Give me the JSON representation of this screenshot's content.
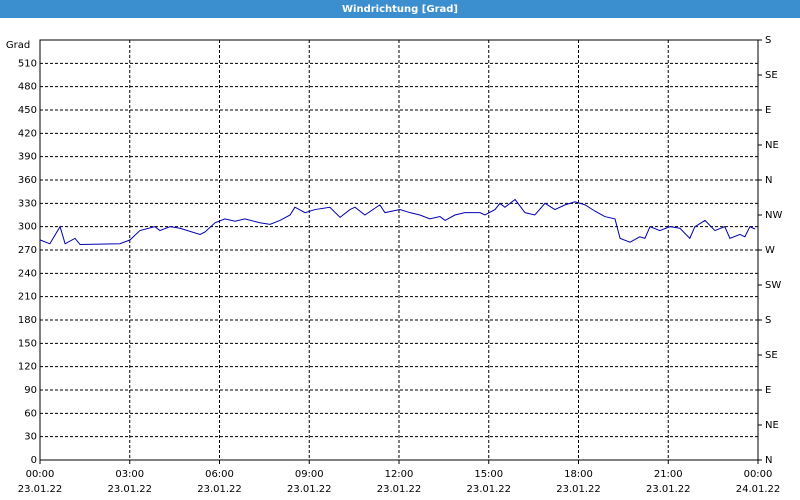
{
  "chart_data": {
    "type": "line",
    "title": "Windrichtung [Grad]",
    "ylabel": "Grad",
    "xlim": [
      0,
      24
    ],
    "xticks": [
      {
        "value": 0,
        "label": "00:00",
        "date": "23.01.22"
      },
      {
        "value": 3,
        "label": "03:00",
        "date": "23.01.22"
      },
      {
        "value": 6,
        "label": "06:00",
        "date": "23.01.22"
      },
      {
        "value": 9,
        "label": "09:00",
        "date": "23.01.22"
      },
      {
        "value": 12,
        "label": "12:00",
        "date": "23.01.22"
      },
      {
        "value": 15,
        "label": "15:00",
        "date": "23.01.22"
      },
      {
        "value": 18,
        "label": "18:00",
        "date": "23.01.22"
      },
      {
        "value": 21,
        "label": "21:00",
        "date": "23.01.22"
      },
      {
        "value": 24,
        "label": "00:00",
        "date": "24.01.22"
      }
    ],
    "ylim": [
      0,
      540
    ],
    "yticks": [
      0,
      30,
      60,
      90,
      120,
      150,
      180,
      210,
      240,
      270,
      300,
      330,
      360,
      390,
      420,
      450,
      480,
      510
    ],
    "y2lim": [
      0,
      540
    ],
    "y2ticks": [
      {
        "value": 0,
        "label": "N"
      },
      {
        "value": 45,
        "label": "NE"
      },
      {
        "value": 90,
        "label": "E"
      },
      {
        "value": 135,
        "label": "SE"
      },
      {
        "value": 180,
        "label": "S"
      },
      {
        "value": 225,
        "label": "SW"
      },
      {
        "value": 270,
        "label": "W"
      },
      {
        "value": 315,
        "label": "NW"
      },
      {
        "value": 360,
        "label": "N"
      },
      {
        "value": 405,
        "label": "NE"
      },
      {
        "value": 450,
        "label": "E"
      },
      {
        "value": 495,
        "label": "SE"
      },
      {
        "value": 540,
        "label": "S"
      }
    ],
    "grid": true,
    "x": [
      0,
      0.33,
      0.67,
      0.84,
      1.17,
      1.34,
      2.67,
      3.01,
      3.34,
      3.84,
      4.01,
      4.35,
      4.68,
      5.35,
      5.51,
      5.85,
      6.18,
      6.52,
      6.85,
      7.35,
      7.69,
      8.02,
      8.36,
      8.52,
      8.86,
      9.19,
      9.69,
      10.03,
      10.36,
      10.53,
      10.86,
      11.36,
      11.53,
      12.03,
      12.37,
      12.7,
      13.03,
      13.37,
      13.54,
      13.87,
      14.2,
      14.71,
      14.87,
      15.21,
      15.37,
      15.54,
      15.88,
      16.21,
      16.54,
      16.88,
      17.21,
      17.55,
      17.88,
      18.22,
      18.55,
      18.88,
      19.22,
      19.39,
      19.72,
      20.05,
      20.22,
      20.39,
      20.72,
      21.06,
      21.39,
      21.72,
      21.89,
      22.23,
      22.56,
      22.89,
      23.06,
      23.4,
      23.56,
      23.73,
      23.9
    ],
    "series": [
      {
        "name": "Windrichtung",
        "color": "#0000b0",
        "values": [
          283,
          278,
          300,
          278,
          285,
          277,
          278,
          283,
          295,
          300,
          295,
          300,
          298,
          290,
          293,
          305,
          310,
          307,
          310,
          305,
          303,
          308,
          315,
          325,
          318,
          322,
          325,
          312,
          322,
          325,
          315,
          328,
          318,
          322,
          318,
          315,
          310,
          313,
          308,
          315,
          318,
          318,
          315,
          322,
          330,
          325,
          335,
          318,
          315,
          330,
          322,
          328,
          332,
          328,
          320,
          313,
          310,
          285,
          280,
          287,
          285,
          300,
          295,
          300,
          298,
          285,
          300,
          308,
          295,
          300,
          285,
          290,
          287,
          300,
          297
        ]
      }
    ]
  }
}
